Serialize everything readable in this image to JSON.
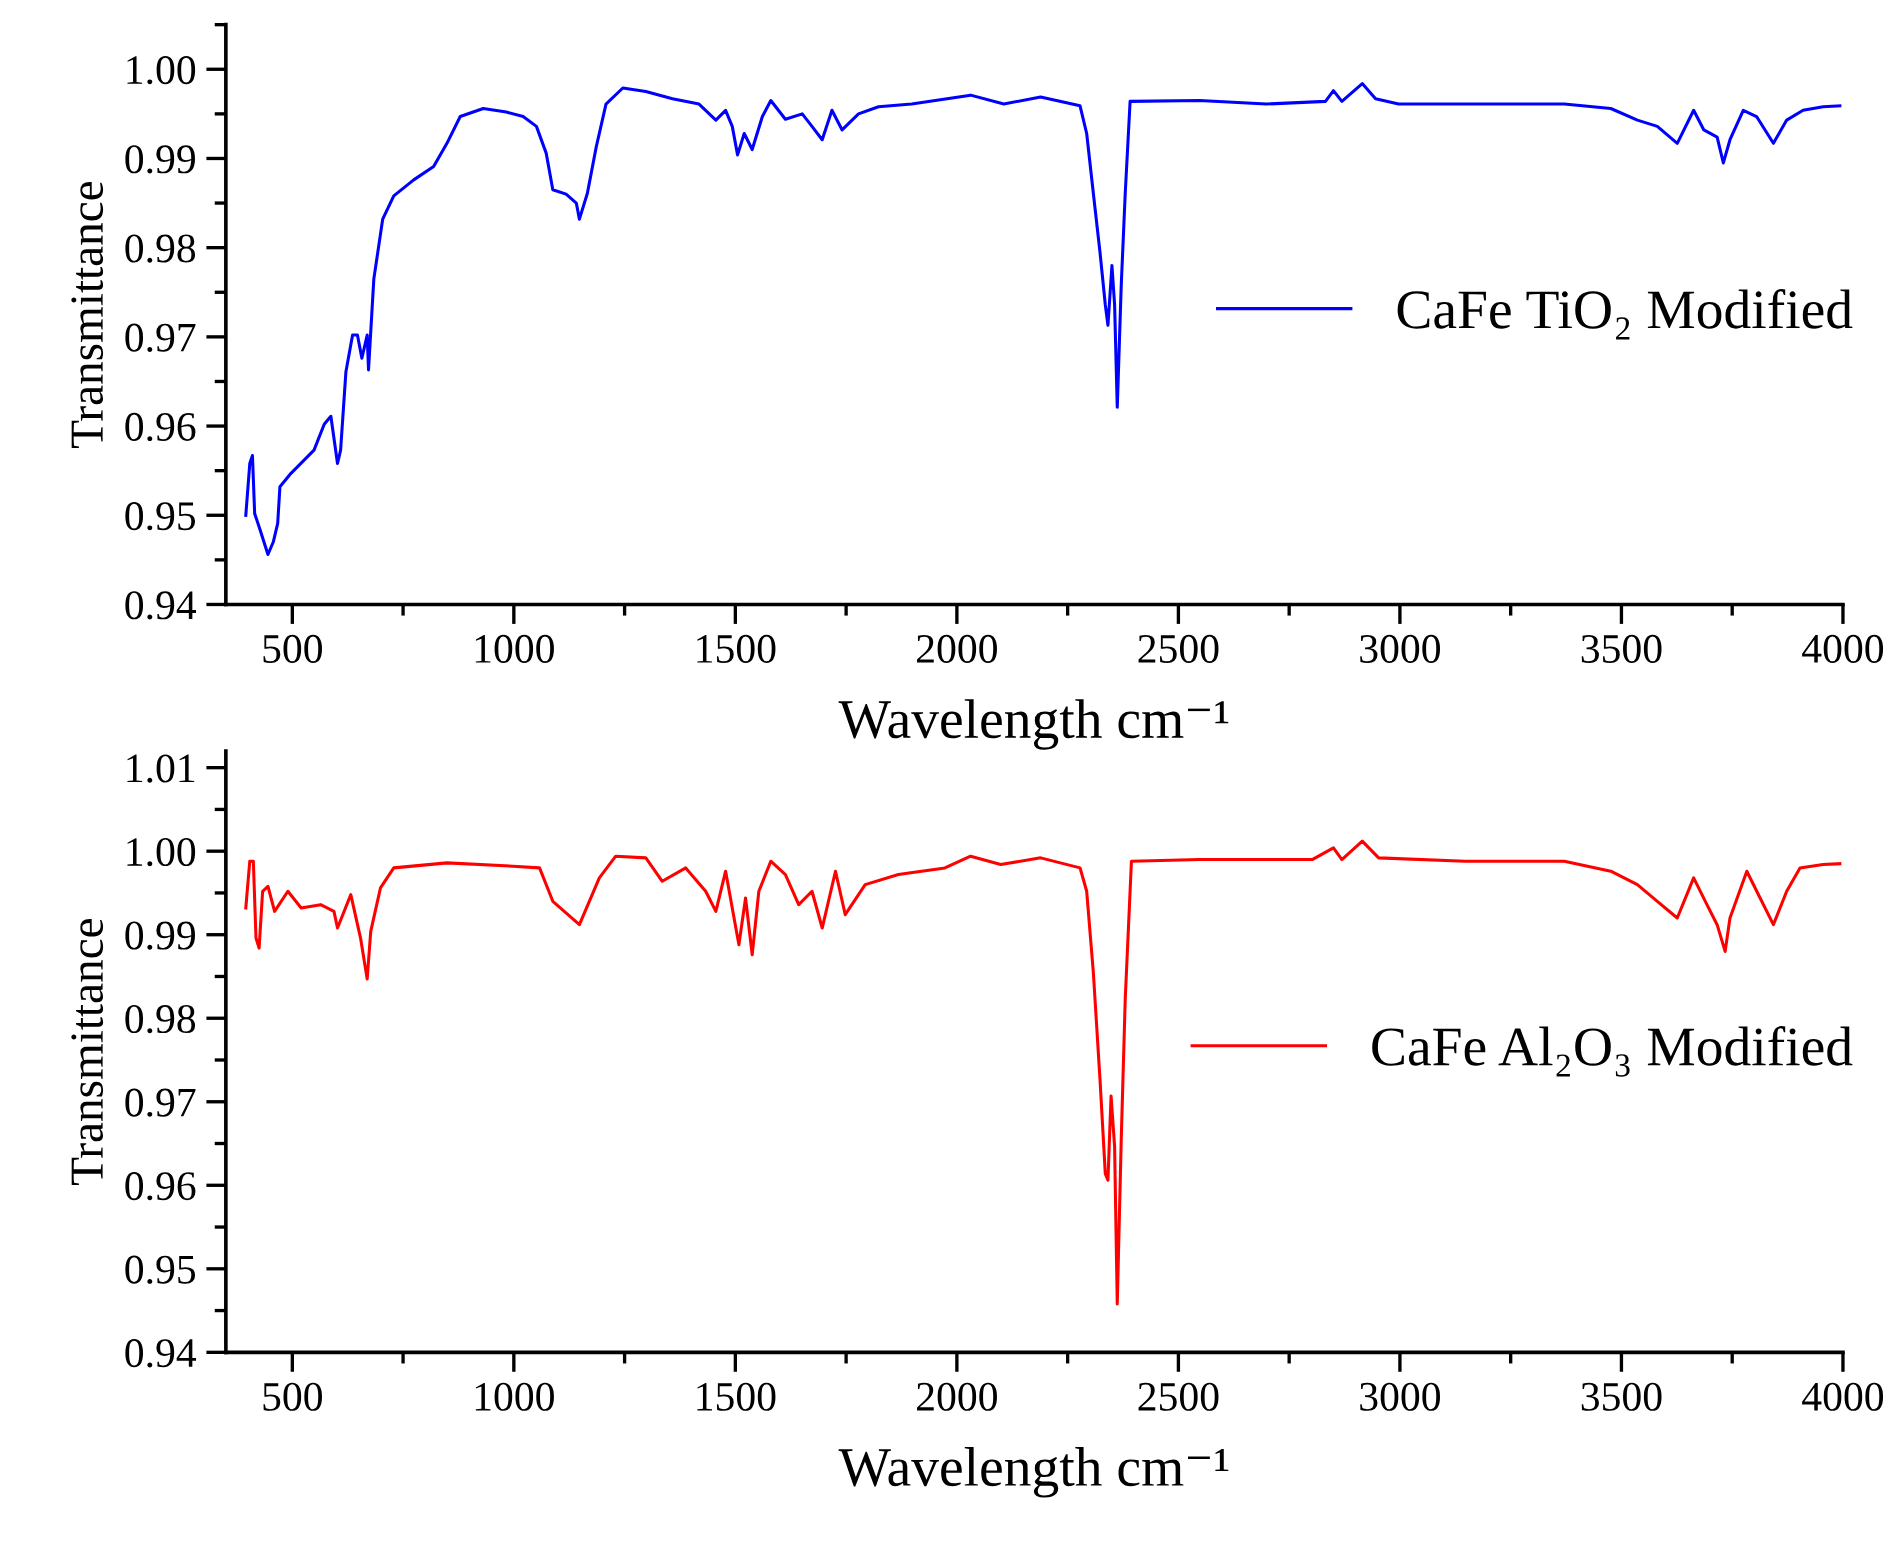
{
  "chart_data": [
    {
      "type": "line",
      "xlabel": "Wavelength cm⁻¹",
      "ylabel": "Transmittance",
      "legend": "right",
      "xlim": [
        350,
        4000
      ],
      "ylim": [
        0.94,
        1.005
      ],
      "xticks": [
        500,
        {
          "value": 750,
          "label": null
        },
        1000,
        {
          "value": 1250,
          "label": null
        },
        1500,
        {
          "value": 1750,
          "label": null
        },
        2000,
        {
          "value": 2250,
          "label": null
        },
        2500,
        {
          "value": 2750,
          "label": null
        },
        3000,
        {
          "value": 3250,
          "label": null
        },
        3500,
        {
          "value": 3750,
          "label": null
        },
        4000
      ],
      "yticks": [
        0.94,
        {
          "value": 0.945,
          "label": null
        },
        0.95,
        {
          "value": 0.955,
          "label": null
        },
        0.96,
        {
          "value": 0.965,
          "label": null
        },
        0.97,
        {
          "value": 0.975,
          "label": null
        },
        0.98,
        {
          "value": 0.985,
          "label": null
        },
        0.99,
        {
          "value": 0.995,
          "label": null
        },
        {
          "value": 1.0,
          "label": "1.00"
        },
        {
          "value": 1.005,
          "label": null
        }
      ],
      "series": [
        {
          "name": "CaFe TiO₂ Modified",
          "color": "#0000ff",
          "x": [
            395,
            404,
            410,
            415,
            427,
            445,
            457,
            467,
            472,
            497,
            549,
            572,
            587,
            602,
            609,
            621,
            636,
            647,
            657,
            669,
            672,
            684,
            704,
            729,
            774,
            819,
            849,
            879,
            931,
            983,
            1021,
            1051,
            1073,
            1088,
            1118,
            1141,
            1148,
            1166,
            1186,
            1208,
            1246,
            1298,
            1358,
            1418,
            1456,
            1478,
            1493,
            1505,
            1520,
            1538,
            1561,
            1580,
            1613,
            1651,
            1673,
            1696,
            1718,
            1741,
            1778,
            1823,
            1898,
            2031,
            2106,
            2189,
            2278,
            2293,
            2308,
            2323,
            2335,
            2341,
            2350,
            2356,
            2362,
            2371,
            2380,
            2391,
            2548,
            2698,
            2832,
            2850,
            2869,
            2915,
            2945,
            2997,
            3147,
            3371,
            3476,
            3536,
            3581,
            3626,
            3663,
            3686,
            3716,
            3730,
            3745,
            3775,
            3805,
            3843,
            3873,
            3910,
            3955,
            3993
          ],
          "values": [
            0.95,
            0.9558,
            0.9567,
            0.9502,
            0.9484,
            0.9456,
            0.947,
            0.9491,
            0.9532,
            0.9547,
            0.9573,
            0.9602,
            0.9611,
            0.9558,
            0.9573,
            0.9661,
            0.9702,
            0.9702,
            0.9676,
            0.9702,
            0.9663,
            0.9765,
            0.9832,
            0.9858,
            0.9876,
            0.9891,
            0.9917,
            0.9947,
            0.9956,
            0.9952,
            0.9947,
            0.9936,
            0.9906,
            0.9865,
            0.986,
            0.985,
            0.9832,
            0.9861,
            0.9913,
            0.9961,
            0.9979,
            0.9975,
            0.9967,
            0.9961,
            0.9943,
            0.9954,
            0.9936,
            0.9904,
            0.9928,
            0.991,
            0.9947,
            0.9965,
            0.9944,
            0.995,
            0.9936,
            0.9921,
            0.9954,
            0.9932,
            0.995,
            0.9958,
            0.9961,
            0.9971,
            0.9961,
            0.9969,
            0.9959,
            0.9928,
            0.9861,
            0.9795,
            0.9736,
            0.9713,
            0.978,
            0.9736,
            0.9621,
            0.9758,
            0.9861,
            0.9964,
            0.9965,
            0.9961,
            0.9964,
            0.9976,
            0.9964,
            0.9984,
            0.9967,
            0.9961,
            0.9961,
            0.9961,
            0.9956,
            0.9943,
            0.9936,
            0.9917,
            0.9954,
            0.9932,
            0.9924,
            0.9895,
            0.9921,
            0.9954,
            0.9947,
            0.9917,
            0.9943,
            0.9954,
            0.9958,
            0.9959
          ]
        }
      ]
    },
    {
      "type": "line",
      "xlabel": "Wavelength cm⁻¹",
      "ylabel": "Transmittance",
      "legend": "right",
      "xlim": [
        350,
        4000
      ],
      "ylim": [
        0.94,
        1.012
      ],
      "xticks": [
        500,
        {
          "value": 750,
          "label": null
        },
        1000,
        {
          "value": 1250,
          "label": null
        },
        1500,
        {
          "value": 1750,
          "label": null
        },
        2000,
        {
          "value": 2250,
          "label": null
        },
        2500,
        {
          "value": 2750,
          "label": null
        },
        3000,
        {
          "value": 3250,
          "label": null
        },
        3500,
        {
          "value": 3750,
          "label": null
        },
        4000
      ],
      "yticks": [
        0.94,
        {
          "value": 0.945,
          "label": null
        },
        0.95,
        {
          "value": 0.955,
          "label": null
        },
        0.96,
        {
          "value": 0.965,
          "label": null
        },
        0.97,
        {
          "value": 0.975,
          "label": null
        },
        0.98,
        {
          "value": 0.985,
          "label": null
        },
        0.99,
        {
          "value": 0.995,
          "label": null
        },
        {
          "value": 1.0,
          "label": "1.00"
        },
        {
          "value": 1.005,
          "label": null
        },
        1.01
      ],
      "series": [
        {
          "name": "CaFe Al₂O₃ Modified",
          "color": "#ff0000",
          "x": [
            395,
            404,
            412,
            418,
            425,
            433,
            445,
            460,
            490,
            520,
            564,
            594,
            602,
            632,
            654,
            669,
            677,
            699,
            729,
            849,
            998,
            1058,
            1088,
            1148,
            1193,
            1230,
            1298,
            1335,
            1388,
            1433,
            1456,
            1478,
            1508,
            1523,
            1538,
            1553,
            1580,
            1613,
            1643,
            1673,
            1696,
            1726,
            1748,
            1793,
            1868,
            1973,
            2031,
            2099,
            2189,
            2278,
            2293,
            2308,
            2323,
            2335,
            2341,
            2348,
            2356,
            2362,
            2371,
            2380,
            2394,
            2548,
            2802,
            2850,
            2869,
            2915,
            2952,
            3147,
            3371,
            3476,
            3536,
            3581,
            3626,
            3663,
            3693,
            3716,
            3734,
            3745,
            3783,
            3813,
            3843,
            3873,
            3903,
            3955,
            3993
          ],
          "values": [
            0.9932,
            0.9988,
            0.9988,
            0.9896,
            0.9884,
            0.9952,
            0.9958,
            0.9928,
            0.9952,
            0.9932,
            0.9936,
            0.9928,
            0.9908,
            0.9948,
            0.9896,
            0.9847,
            0.9904,
            0.9956,
            0.998,
            0.9986,
            0.9982,
            0.998,
            0.994,
            0.9912,
            0.9968,
            0.9994,
            0.9992,
            0.9964,
            0.998,
            0.9952,
            0.9928,
            0.9976,
            0.9888,
            0.9944,
            0.9876,
            0.9952,
            0.9988,
            0.9972,
            0.9936,
            0.9952,
            0.9908,
            0.9976,
            0.9924,
            0.996,
            0.9972,
            0.998,
            0.9994,
            0.9984,
            0.9992,
            0.998,
            0.9952,
            0.9855,
            0.9727,
            0.9614,
            0.9606,
            0.9707,
            0.9647,
            0.9458,
            0.9655,
            0.9823,
            0.9988,
            0.999,
            0.999,
            1.0004,
            0.999,
            1.0012,
            0.9992,
            0.9988,
            0.9988,
            0.9976,
            0.996,
            0.994,
            0.992,
            0.9968,
            0.9936,
            0.9912,
            0.988,
            0.992,
            0.9976,
            0.9944,
            0.9912,
            0.9952,
            0.998,
            0.9984,
            0.9985
          ]
        }
      ]
    }
  ]
}
